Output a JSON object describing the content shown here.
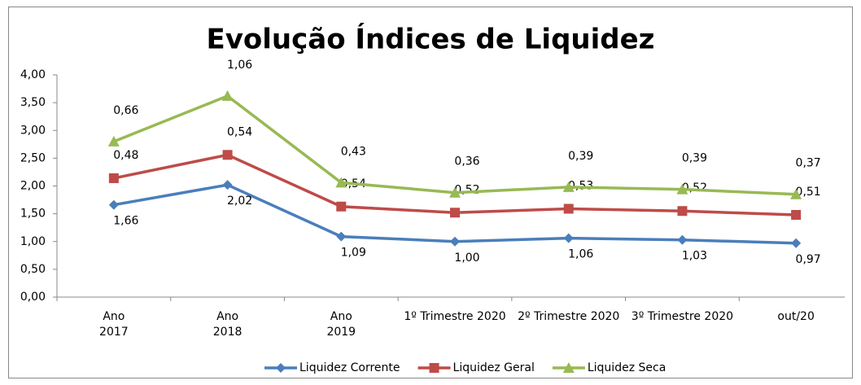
{
  "chart_data": {
    "type": "line",
    "stacked": true,
    "title": "Evolução Índices de Liquidez",
    "categories": [
      "Ano\n2017",
      "Ano\n2018",
      "Ano\n2019",
      "1º Trimestre 2020",
      "2º Trimestre 2020",
      "3º Trimestre 2020",
      "out/20"
    ],
    "series": [
      {
        "name": "Liquidez Corrente",
        "color": "#4a7ebb",
        "marker": "diamond",
        "values": [
          1.66,
          2.02,
          1.09,
          1.0,
          1.06,
          1.03,
          0.97
        ],
        "value_labels": [
          "1,66",
          "2,02",
          "1,09",
          "1,00",
          "1,06",
          "1,03",
          "0,97"
        ]
      },
      {
        "name": "Liquidez Geral",
        "color": "#be4b48",
        "marker": "square",
        "values": [
          0.48,
          0.54,
          0.54,
          0.52,
          0.53,
          0.52,
          0.51
        ],
        "value_labels": [
          "0,48",
          "0,54",
          "0,54",
          "0,52",
          "0,53",
          "0,52",
          "0,51"
        ]
      },
      {
        "name": "Liquidez Seca",
        "color": "#98b954",
        "marker": "triangle",
        "values": [
          0.66,
          1.06,
          0.43,
          0.36,
          0.39,
          0.39,
          0.37
        ],
        "value_labels": [
          "0,66",
          "1,06",
          "0,43",
          "0,36",
          "0,39",
          "0,39",
          "0,37"
        ]
      }
    ],
    "ylim": [
      0,
      4
    ],
    "yticks": [
      {
        "value": 0,
        "label": "0,00"
      },
      {
        "value": 0.5,
        "label": "0,50"
      },
      {
        "value": 1,
        "label": "1,00"
      },
      {
        "value": 1.5,
        "label": "1,50"
      },
      {
        "value": 2,
        "label": "2,00"
      },
      {
        "value": 2.5,
        "label": "2,50"
      },
      {
        "value": 3,
        "label": "3,00"
      },
      {
        "value": 3.5,
        "label": "3,50"
      },
      {
        "value": 4,
        "label": "4,00"
      }
    ],
    "legend": "bottom"
  }
}
